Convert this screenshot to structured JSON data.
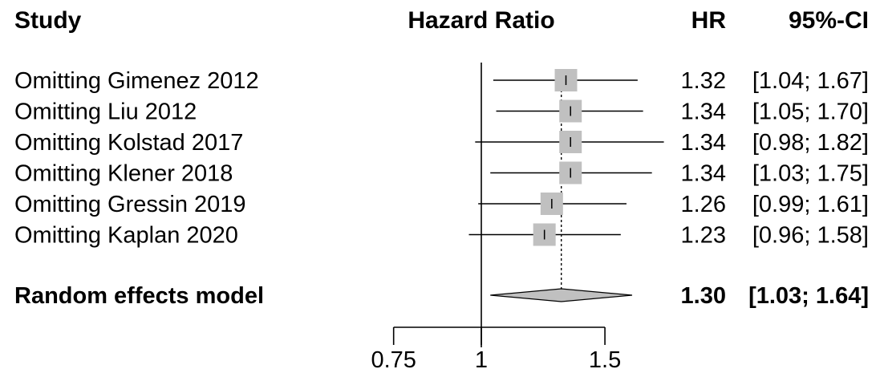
{
  "headers": {
    "study": "Study",
    "effect": "Hazard Ratio",
    "hr": "HR",
    "ci": "95%-CI"
  },
  "chart_data": {
    "type": "forest",
    "x_scale": "log",
    "xlim": [
      0.7,
      1.7
    ],
    "reference_line": 1,
    "x_ticks": [
      0.75,
      1,
      1.5
    ],
    "x_tick_labels": [
      "0.75",
      "1",
      "1.5"
    ],
    "studies": [
      {
        "label": "Omitting Gimenez 2012",
        "hr": 1.32,
        "lower": 1.04,
        "upper": 1.67,
        "hr_text": "1.32",
        "ci_text": "[1.04; 1.67]",
        "weight": 1.0
      },
      {
        "label": "Omitting Liu 2012",
        "hr": 1.34,
        "lower": 1.05,
        "upper": 1.7,
        "hr_text": "1.34",
        "ci_text": "[1.05; 1.70]",
        "weight": 1.0
      },
      {
        "label": "Omitting Kolstad 2017",
        "hr": 1.34,
        "lower": 0.98,
        "upper": 1.82,
        "hr_text": "1.34",
        "ci_text": "[0.98; 1.82]",
        "weight": 1.0
      },
      {
        "label": "Omitting Klener 2018",
        "hr": 1.34,
        "lower": 1.03,
        "upper": 1.75,
        "hr_text": "1.34",
        "ci_text": "[1.03; 1.75]",
        "weight": 1.0
      },
      {
        "label": "Omitting Gressin 2019",
        "hr": 1.26,
        "lower": 0.99,
        "upper": 1.61,
        "hr_text": "1.26",
        "ci_text": "[0.99; 1.61]",
        "weight": 1.0
      },
      {
        "label": "Omitting Kaplan 2020",
        "hr": 1.23,
        "lower": 0.96,
        "upper": 1.58,
        "hr_text": "1.23",
        "ci_text": "[0.96; 1.58]",
        "weight": 1.0
      }
    ],
    "pooled": {
      "label": "Random effects model",
      "hr": 1.3,
      "lower": 1.03,
      "upper": 1.64,
      "hr_text": "1.30",
      "ci_text": "[1.03; 1.64]"
    }
  },
  "colors": {
    "box": "#c0c0c0",
    "diamond": "#c0c0c0",
    "line": "#000000"
  }
}
